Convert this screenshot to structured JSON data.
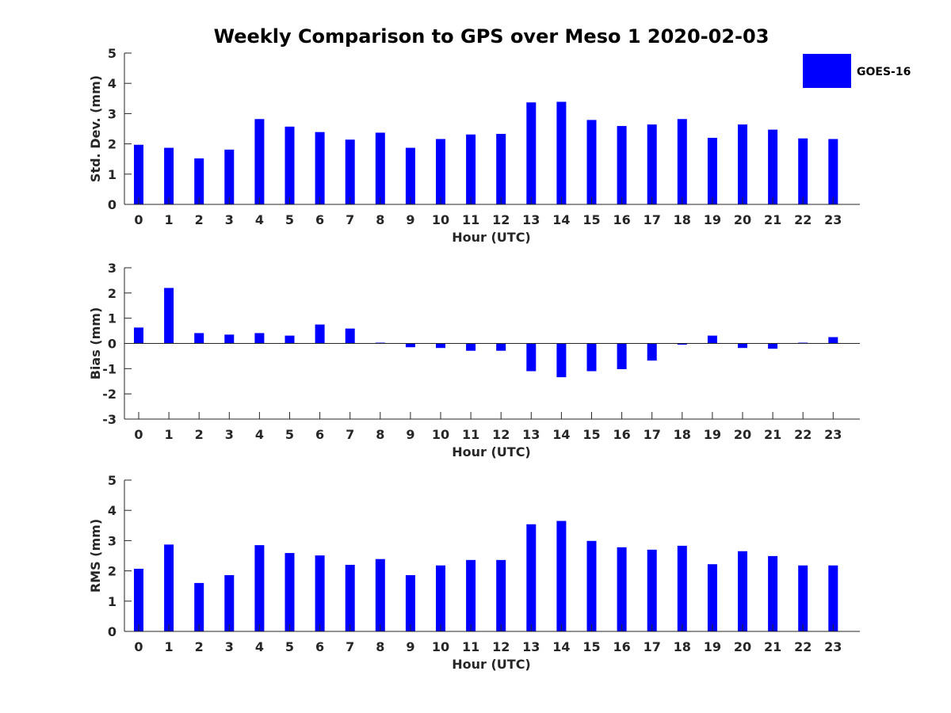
{
  "title": "Weekly Comparison to GPS over Meso 1 2020-02-03",
  "colors": {
    "bar": "#0000ff",
    "axis": "#262626"
  },
  "legend": {
    "label": "GOES-16",
    "placement": "top-right"
  },
  "chart_data": [
    {
      "type": "bar",
      "name": "std-dev",
      "series_name": "GOES-16",
      "xlabel": "Hour (UTC)",
      "ylabel": "Std. Dev. (mm)",
      "ylim": [
        0,
        5
      ],
      "yticks": [
        0,
        1,
        2,
        3,
        4,
        5
      ],
      "categories": [
        "0",
        "1",
        "2",
        "3",
        "4",
        "5",
        "6",
        "7",
        "8",
        "9",
        "10",
        "11",
        "12",
        "13",
        "14",
        "15",
        "16",
        "17",
        "18",
        "19",
        "20",
        "21",
        "22",
        "23"
      ],
      "values": [
        1.97,
        1.87,
        1.52,
        1.81,
        2.82,
        2.57,
        2.39,
        2.14,
        2.37,
        1.87,
        2.16,
        2.31,
        2.33,
        3.37,
        3.39,
        2.79,
        2.59,
        2.64,
        2.82,
        2.2,
        2.64,
        2.47,
        2.18,
        2.16
      ]
    },
    {
      "type": "bar",
      "name": "bias",
      "series_name": "GOES-16",
      "xlabel": "Hour (UTC)",
      "ylabel": "Bias (mm)",
      "ylim": [
        -3,
        3
      ],
      "yticks": [
        -3,
        -2,
        -1,
        0,
        1,
        2,
        3
      ],
      "categories": [
        "0",
        "1",
        "2",
        "3",
        "4",
        "5",
        "6",
        "7",
        "8",
        "9",
        "10",
        "11",
        "12",
        "13",
        "14",
        "15",
        "16",
        "17",
        "18",
        "19",
        "20",
        "21",
        "22",
        "23"
      ],
      "values": [
        0.63,
        2.2,
        0.41,
        0.35,
        0.41,
        0.31,
        0.75,
        0.59,
        0.03,
        -0.15,
        -0.18,
        -0.29,
        -0.29,
        -1.1,
        -1.34,
        -1.1,
        -1.02,
        -0.68,
        -0.05,
        0.31,
        -0.18,
        -0.21,
        0.03,
        0.25
      ]
    },
    {
      "type": "bar",
      "name": "rms",
      "series_name": "GOES-16",
      "xlabel": "Hour (UTC)",
      "ylabel": "RMS (mm)",
      "ylim": [
        0,
        5
      ],
      "yticks": [
        0,
        1,
        2,
        3,
        4,
        5
      ],
      "categories": [
        "0",
        "1",
        "2",
        "3",
        "4",
        "5",
        "6",
        "7",
        "8",
        "9",
        "10",
        "11",
        "12",
        "13",
        "14",
        "15",
        "16",
        "17",
        "18",
        "19",
        "20",
        "21",
        "22",
        "23"
      ],
      "values": [
        2.07,
        2.87,
        1.6,
        1.86,
        2.85,
        2.59,
        2.51,
        2.2,
        2.39,
        1.86,
        2.18,
        2.36,
        2.36,
        3.54,
        3.65,
        2.99,
        2.78,
        2.7,
        2.83,
        2.22,
        2.65,
        2.49,
        2.18,
        2.18
      ]
    }
  ]
}
